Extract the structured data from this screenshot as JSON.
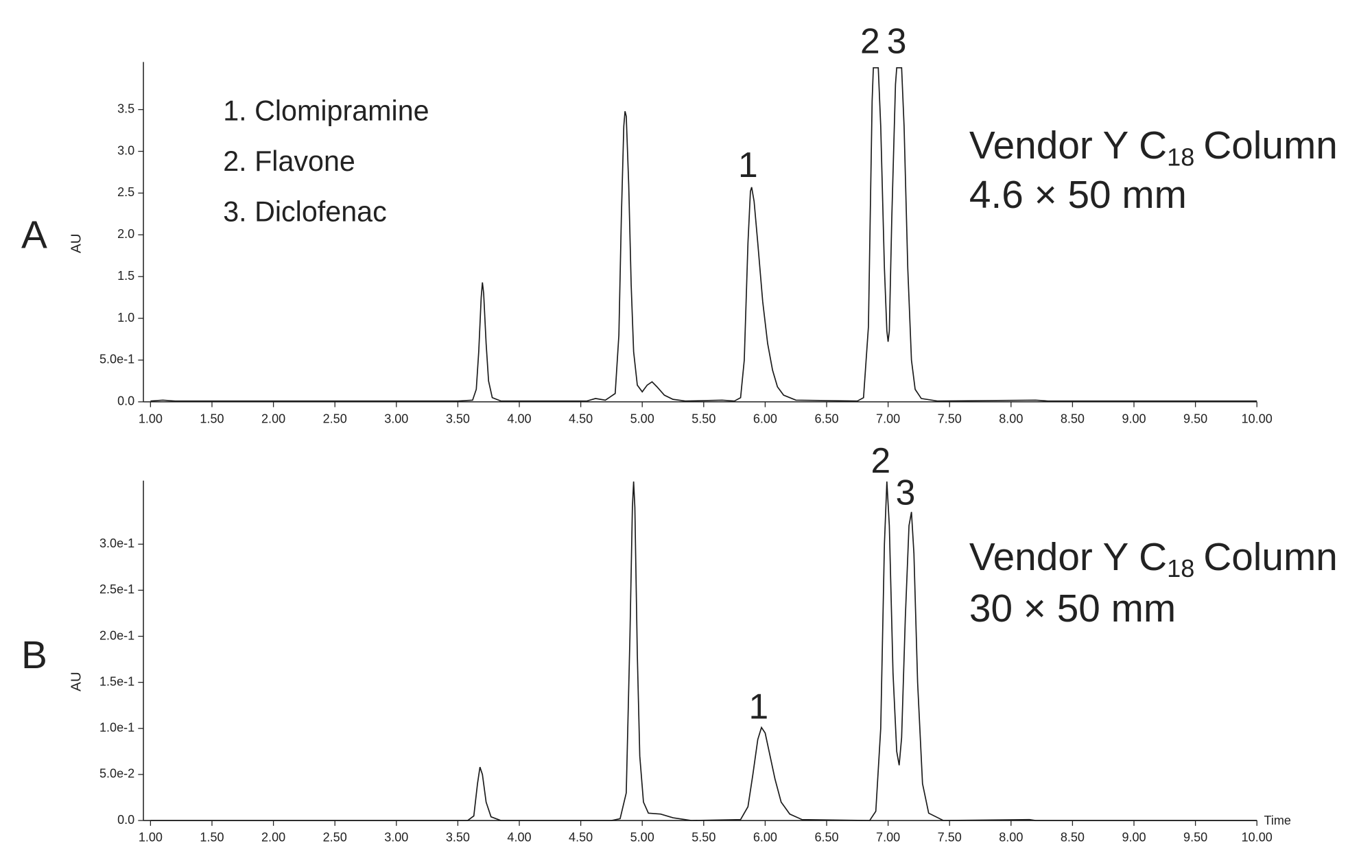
{
  "chart_data": [
    {
      "type": "line",
      "panel_label": "A",
      "y_label": "AU",
      "compound_list": [
        "1. Clomipramine",
        "2. Flavone",
        "3. Diclofenac"
      ],
      "column_label": {
        "text": "Vendor Y C",
        "subscript": "18",
        "suffix": "Column",
        "size": "4.6 × 50 mm"
      },
      "peak_labels": [
        "1",
        "2",
        "3"
      ],
      "xlim": [
        1.0,
        10.0
      ],
      "ylim": [
        0,
        4.07
      ],
      "xticks": [
        {
          "value": 1,
          "label": "1.00"
        },
        {
          "value": 1.5,
          "label": "1.50"
        },
        {
          "value": 2,
          "label": "2.00"
        },
        {
          "value": 2.5,
          "label": "2.50"
        },
        {
          "value": 3,
          "label": "3.00"
        },
        {
          "value": 3.5,
          "label": "3.50"
        },
        {
          "value": 4,
          "label": "4.00"
        },
        {
          "value": 4.5,
          "label": "4.50"
        },
        {
          "value": 5,
          "label": "5.00"
        },
        {
          "value": 5.5,
          "label": "5.50"
        },
        {
          "value": 6,
          "label": "6.00"
        },
        {
          "value": 6.5,
          "label": "6.50"
        },
        {
          "value": 7,
          "label": "7.00"
        },
        {
          "value": 7.5,
          "label": "7.50"
        },
        {
          "value": 8,
          "label": "8.00"
        },
        {
          "value": 8.5,
          "label": "8.50"
        },
        {
          "value": 9,
          "label": "9.00"
        },
        {
          "value": 9.5,
          "label": "9.50"
        },
        {
          "value": 10,
          "label": "10.00"
        }
      ],
      "yticks": [
        {
          "value": 0,
          "label": "0.0"
        },
        {
          "value": 0.5,
          "label": "5.0e-1"
        },
        {
          "value": 1,
          "label": "1.0"
        },
        1.5,
        {
          "value": 2,
          "label": "2.0"
        },
        2.5,
        {
          "value": 3,
          "label": "3.0"
        },
        3.5
      ],
      "x": [
        1.0,
        1.1,
        1.2,
        3.5,
        3.62,
        3.65,
        3.67,
        3.69,
        3.7,
        3.71,
        3.73,
        3.75,
        3.78,
        3.85,
        4.55,
        4.62,
        4.7,
        4.78,
        4.81,
        4.83,
        4.85,
        4.86,
        4.87,
        4.89,
        4.91,
        4.93,
        4.96,
        5.0,
        5.04,
        5.08,
        5.12,
        5.18,
        5.25,
        5.35,
        5.65,
        5.75,
        5.8,
        5.83,
        5.86,
        5.88,
        5.89,
        5.91,
        5.94,
        5.98,
        6.02,
        6.06,
        6.1,
        6.15,
        6.25,
        6.75,
        6.8,
        6.84,
        6.87,
        6.88,
        6.92,
        6.94,
        6.97,
        6.99,
        7.0,
        7.01,
        7.03,
        7.06,
        7.07,
        7.11,
        7.13,
        7.16,
        7.19,
        7.22,
        7.27,
        7.4,
        8.2,
        8.3,
        10.0
      ],
      "series": [
        {
          "color": "#1a1a1a",
          "values": [
            0.01,
            0.02,
            0.01,
            0.01,
            0.02,
            0.15,
            0.6,
            1.25,
            1.43,
            1.3,
            0.7,
            0.25,
            0.05,
            0.01,
            0.01,
            0.04,
            0.02,
            0.1,
            0.8,
            2.2,
            3.3,
            3.48,
            3.42,
            2.6,
            1.4,
            0.6,
            0.2,
            0.12,
            0.2,
            0.24,
            0.18,
            0.08,
            0.03,
            0.01,
            0.02,
            0.01,
            0.05,
            0.5,
            1.9,
            2.52,
            2.57,
            2.4,
            1.9,
            1.2,
            0.7,
            0.38,
            0.18,
            0.08,
            0.02,
            0.01,
            0.05,
            0.9,
            3.6,
            4.0,
            4.0,
            3.3,
            1.6,
            0.85,
            0.72,
            0.85,
            2.2,
            3.8,
            4.0,
            4.0,
            3.3,
            1.6,
            0.5,
            0.15,
            0.04,
            0.01,
            0.02,
            0.01,
            0.01
          ]
        }
      ]
    },
    {
      "type": "line",
      "panel_label": "B",
      "y_label": "AU",
      "x_label": "Time",
      "column_label": {
        "text": "Vendor Y C",
        "subscript": "18",
        "suffix": "Column",
        "size": "30 × 50 mm"
      },
      "peak_labels": [
        "1",
        "2",
        "3"
      ],
      "xlim": [
        1.0,
        10.0
      ],
      "ylim": [
        0,
        0.369
      ],
      "xticks": [
        {
          "value": 1,
          "label": "1.00"
        },
        {
          "value": 1.5,
          "label": "1.50"
        },
        {
          "value": 2,
          "label": "2.00"
        },
        {
          "value": 2.5,
          "label": "2.50"
        },
        {
          "value": 3,
          "label": "3.00"
        },
        {
          "value": 3.5,
          "label": "3.50"
        },
        {
          "value": 4,
          "label": "4.00"
        },
        {
          "value": 4.5,
          "label": "4.50"
        },
        {
          "value": 5,
          "label": "5.00"
        },
        {
          "value": 5.5,
          "label": "5.50"
        },
        {
          "value": 6,
          "label": "6.00"
        },
        {
          "value": 6.5,
          "label": "6.50"
        },
        {
          "value": 7,
          "label": "7.00"
        },
        {
          "value": 7.5,
          "label": "7.50"
        },
        {
          "value": 8,
          "label": "8.00"
        },
        {
          "value": 8.5,
          "label": "8.50"
        },
        {
          "value": 9,
          "label": "9.00"
        },
        {
          "value": 9.5,
          "label": "9.50"
        },
        {
          "value": 10,
          "label": "10.00"
        }
      ],
      "yticks": [
        {
          "value": 0,
          "label": "0.0"
        },
        {
          "value": 0.05,
          "label": "5.0e-2"
        },
        {
          "value": 0.1,
          "label": "1.0e-1"
        },
        {
          "value": 0.15,
          "label": "1.5e-1"
        },
        {
          "value": 0.2,
          "label": "2.0e-1"
        },
        {
          "value": 0.25,
          "label": "2.5e-1"
        },
        {
          "value": 0.3,
          "label": "3.0e-1"
        }
      ],
      "x": [
        1.0,
        3.58,
        3.63,
        3.66,
        3.68,
        3.7,
        3.73,
        3.77,
        3.85,
        4.75,
        4.82,
        4.87,
        4.9,
        4.92,
        4.93,
        4.94,
        4.96,
        4.98,
        5.01,
        5.05,
        5.15,
        5.25,
        5.4,
        5.8,
        5.86,
        5.9,
        5.94,
        5.97,
        6.0,
        6.04,
        6.08,
        6.13,
        6.2,
        6.3,
        6.85,
        6.9,
        6.94,
        6.97,
        6.99,
        7.01,
        7.04,
        7.07,
        7.09,
        7.11,
        7.14,
        7.17,
        7.19,
        7.21,
        7.24,
        7.28,
        7.33,
        7.45,
        8.15,
        8.2,
        10.0
      ],
      "series": [
        {
          "color": "#1a1a1a",
          "values": [
            0,
            0,
            0.005,
            0.04,
            0.058,
            0.05,
            0.02,
            0.004,
            0,
            0,
            0.002,
            0.03,
            0.2,
            0.34,
            0.368,
            0.34,
            0.18,
            0.07,
            0.02,
            0.008,
            0.007,
            0.003,
            0,
            0.001,
            0.015,
            0.05,
            0.088,
            0.101,
            0.095,
            0.07,
            0.045,
            0.02,
            0.007,
            0.001,
            0,
            0.01,
            0.1,
            0.3,
            0.368,
            0.32,
            0.16,
            0.075,
            0.06,
            0.09,
            0.22,
            0.32,
            0.335,
            0.29,
            0.15,
            0.04,
            0.008,
            0,
            0.001,
            0,
            0
          ]
        }
      ]
    }
  ]
}
